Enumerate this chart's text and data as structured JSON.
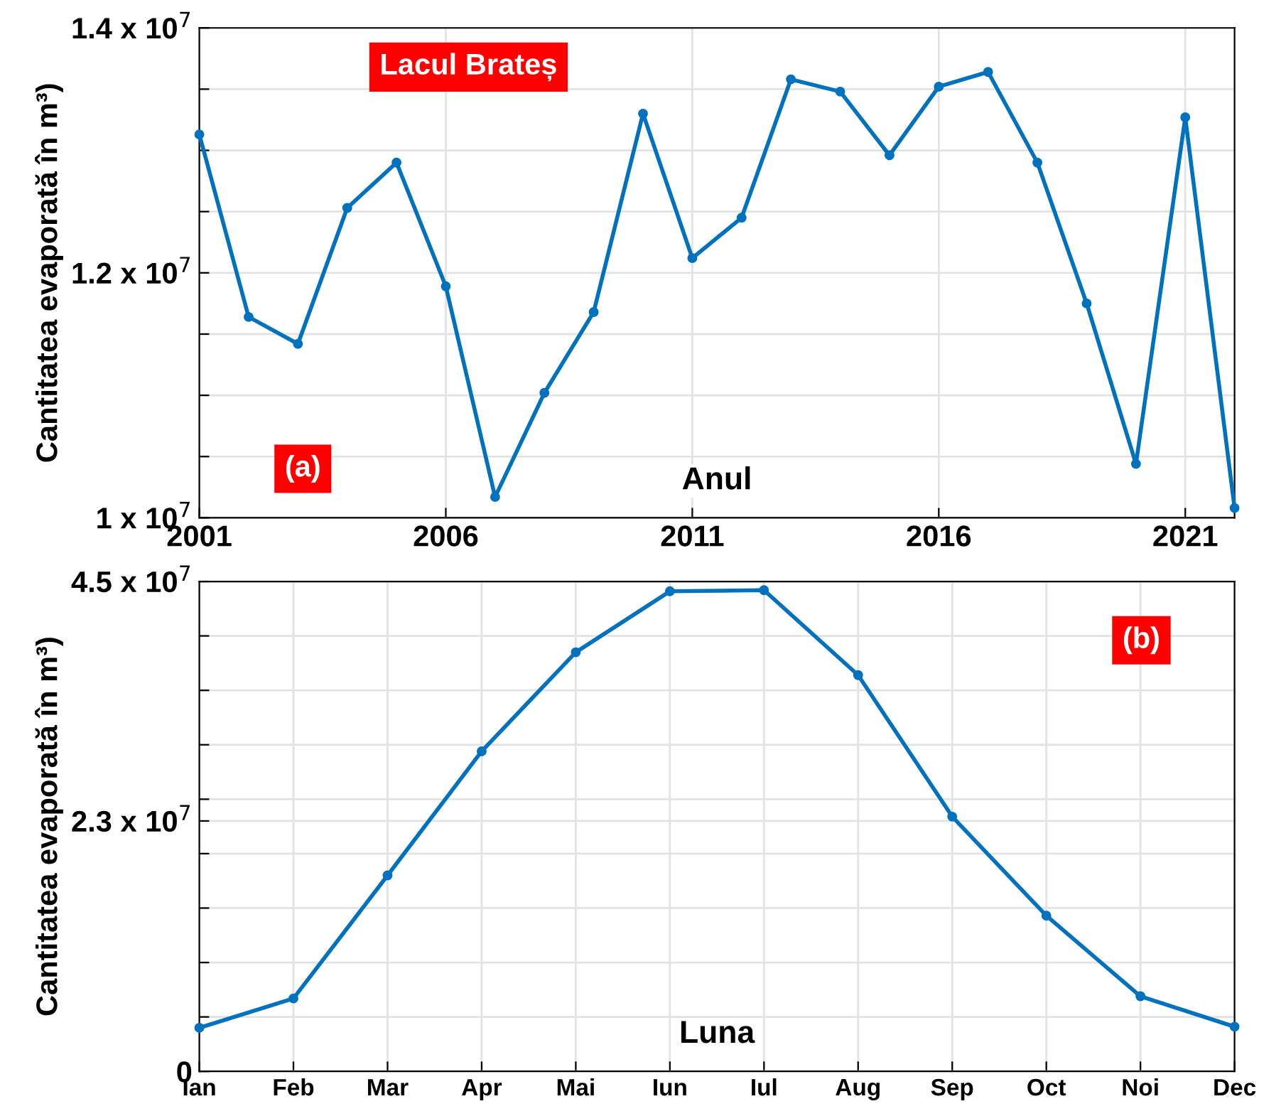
{
  "chart_data": [
    {
      "type": "line",
      "xlabel": "Anul",
      "ylabel": "Cantitatea evaporată în m³)",
      "annotations": [
        "Lacul Brateș",
        "(a)"
      ],
      "x": [
        2001,
        2002,
        2003,
        2004,
        2005,
        2006,
        2007,
        2008,
        2009,
        2010,
        2011,
        2012,
        2013,
        2014,
        2015,
        2016,
        2017,
        2018,
        2019,
        2020,
        2021,
        2022
      ],
      "series": [
        {
          "color": "#0072bd",
          "values": [
            13130000,
            11640000,
            11420000,
            12530000,
            12900000,
            11890000,
            10170000,
            11020000,
            11680000,
            13300000,
            12120000,
            12450000,
            13580000,
            13480000,
            12960000,
            13520000,
            13640000,
            12900000,
            11750000,
            10440000,
            13270000,
            10080000
          ]
        }
      ],
      "xlim": [
        2001,
        2022
      ],
      "xticks": [
        2001,
        2006,
        2011,
        2016,
        2021
      ],
      "ylim": [
        10000000,
        14000000
      ],
      "yticks": [
        {
          "value": 10000000,
          "label": "1 x 10$^{7}$"
        },
        {
          "value": 10500000,
          "label": null
        },
        {
          "value": 11000000,
          "label": null
        },
        {
          "value": 11500000,
          "label": null
        },
        {
          "value": 12000000,
          "label": "1.2 x 10$^{7}$"
        },
        {
          "value": 12500000,
          "label": null
        },
        {
          "value": 13000000,
          "label": null
        },
        {
          "value": 13500000,
          "label": null
        },
        {
          "value": 14000000,
          "label": "1.4 x 10$^{7}$"
        }
      ],
      "grid": true,
      "marker": "circle",
      "line_style": "solid"
    },
    {
      "type": "line",
      "xlabel": "Luna",
      "ylabel": "Cantitatea evaporată în m³)",
      "annotations": [
        "(b)"
      ],
      "categories": [
        "Ian",
        "Feb",
        "Mar",
        "Apr",
        "Mai",
        "Iun",
        "Iul",
        "Aug",
        "Sep",
        "Oct",
        "Noi",
        "Dec"
      ],
      "series": [
        {
          "color": "#0072bd",
          "values": [
            4000000,
            6700000,
            18000000,
            29400000,
            38500000,
            44100000,
            44200000,
            36400000,
            23400000,
            14300000,
            6900000,
            4100000
          ]
        }
      ],
      "ylim": [
        0,
        45000000
      ],
      "yticks": [
        0,
        {
          "value": 5000000,
          "label": null
        },
        {
          "value": 10000000,
          "label": null
        },
        {
          "value": 15000000,
          "label": null
        },
        {
          "value": 20000000,
          "label": null
        },
        {
          "value": 23000000,
          "label": "2.3 x 10$^{7}$"
        },
        {
          "value": 25000000,
          "label": null
        },
        {
          "value": 30000000,
          "label": null
        },
        {
          "value": 35000000,
          "label": null
        },
        {
          "value": 40000000,
          "label": null
        },
        {
          "value": 45000000,
          "label": "4.5 x 10$^{7}$"
        }
      ],
      "grid": true,
      "marker": "circle",
      "line_style": "solid"
    }
  ]
}
